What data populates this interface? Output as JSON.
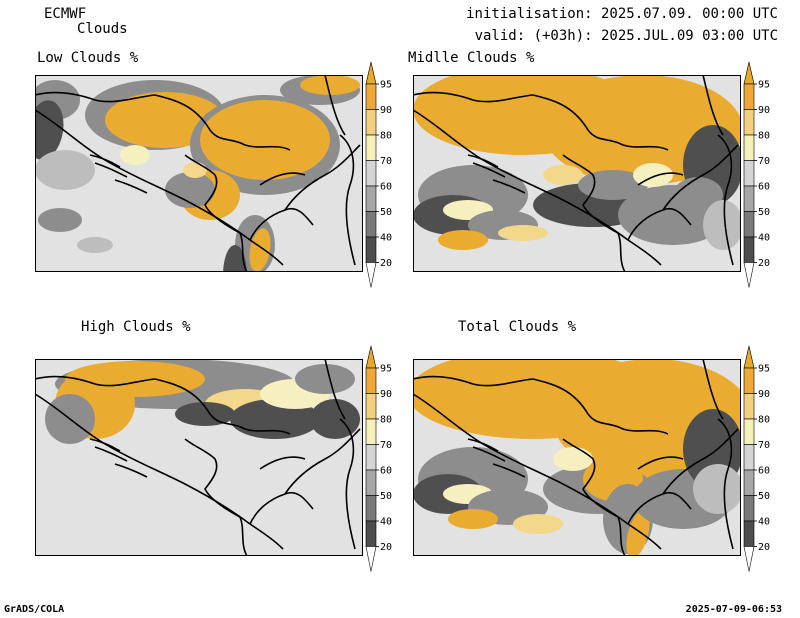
{
  "header": {
    "model": "ECMWF",
    "variable": "Clouds",
    "init_label": "initialisation: 2025.07.09. 00:00 UTC",
    "valid_label": "valid: (+03h): 2025.JUL.09 03:00 UTC"
  },
  "panels": [
    {
      "id": "low",
      "title": "Low Clouds %"
    },
    {
      "id": "middle",
      "title": "Midlle Clouds %"
    },
    {
      "id": "high",
      "title": "High Clouds %"
    },
    {
      "id": "total",
      "title": "Total Clouds %"
    }
  ],
  "colorbar": {
    "levels": [
      "95",
      "90",
      "80",
      "70",
      "60",
      "50",
      "40",
      "20"
    ],
    "colors": {
      "c20": "#ffffff",
      "c40": "#4d4d4d",
      "c50": "#7a7a7a",
      "c60": "#a6a6a6",
      "c70": "#d4d4d4",
      "c80": "#f4f0b8",
      "c90": "#f2d080",
      "c95": "#eea93a",
      "gt95": "#e8a82c"
    }
  },
  "map_colors": {
    "background": "#e2e2e2",
    "cloud_dense": "#e9ab30",
    "cloud_mid": "#f3d78a",
    "cloud_light": "#f6f0c0",
    "grey_dark": "#4f4f4f",
    "grey_mid": "#8d8d8d",
    "grey_light": "#bdbdbd",
    "border": "#000000"
  },
  "footer": {
    "left": "GrADS/COLA",
    "right": "2025-07-09-06:53"
  }
}
